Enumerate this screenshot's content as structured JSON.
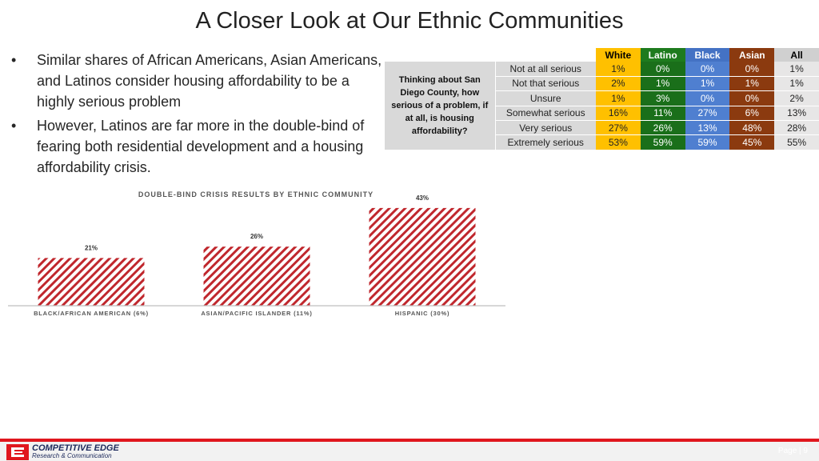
{
  "title": "A Closer Look at Our Ethnic Communities",
  "bullets": [
    "Similar shares of African Americans, Asian Americans, and Latinos consider housing affordability to be a highly serious problem",
    "However, Latinos are far more in the double-bind of fearing both residential development and a housing affordability crisis."
  ],
  "survey_table": {
    "question": "Thinking about San Diego County, how serious of a problem, if at all, is housing affordability?",
    "columns": [
      "White",
      "Latino",
      "Black",
      "Asian",
      "All"
    ],
    "rows": [
      {
        "label": "Not at all serious",
        "values": [
          "1%",
          "0%",
          "0%",
          "0%",
          "1%"
        ]
      },
      {
        "label": "Not that serious",
        "values": [
          "2%",
          "1%",
          "1%",
          "1%",
          "1%"
        ]
      },
      {
        "label": "Unsure",
        "values": [
          "1%",
          "3%",
          "0%",
          "0%",
          "2%"
        ]
      },
      {
        "label": "Somewhat serious",
        "values": [
          "16%",
          "11%",
          "27%",
          "6%",
          "13%"
        ]
      },
      {
        "label": "Very serious",
        "values": [
          "27%",
          "26%",
          "13%",
          "48%",
          "28%"
        ]
      },
      {
        "label": "Extremely serious",
        "values": [
          "53%",
          "59%",
          "59%",
          "45%",
          "55%"
        ]
      }
    ],
    "colors": {
      "White": "#ffc000",
      "Latino": "#1e7b1e",
      "Black": "#4472c4",
      "Asian": "#8b3a0f",
      "All": "#d9d9d9"
    }
  },
  "chart_data": {
    "type": "bar",
    "title": "DOUBLE-BIND CRISIS RESULTS BY ETHNIC COMMUNITY",
    "categories": [
      "BLACK/AFRICAN AMERICAN (6%)",
      "ASIAN/PACIFIC ISLANDER (11%)",
      "HISPANIC (30%)"
    ],
    "values": [
      21,
      26,
      43
    ],
    "value_labels": [
      "21%",
      "26%",
      "43%"
    ],
    "ylim": [
      0,
      50
    ],
    "grid": false,
    "legend": "none",
    "bar_fill": "hatched",
    "color": "#c0272d"
  },
  "footer": {
    "brand_line1": "COMPETITIVE EDGE",
    "brand_line2": "Research & Communication",
    "page": "Page | 9"
  }
}
